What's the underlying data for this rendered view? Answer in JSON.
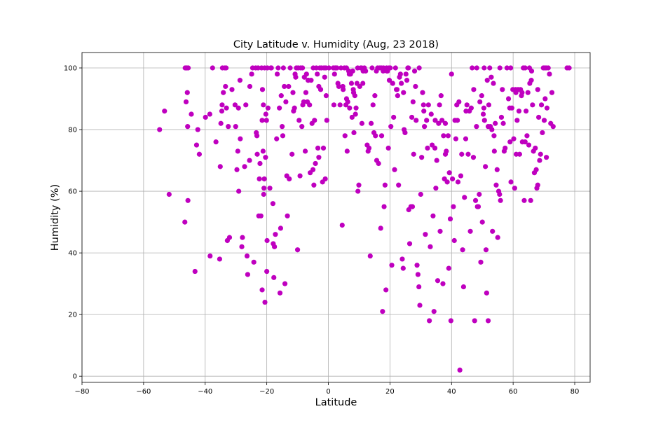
{
  "chart_data": {
    "type": "scatter",
    "title": "City Latitude v. Humidity (Aug, 23 2018)",
    "xlabel": "Latitude",
    "ylabel": "Humidity (%)",
    "xlim": [
      -80,
      85
    ],
    "ylim": [
      -2,
      105
    ],
    "xticks": [
      -80,
      -60,
      -40,
      -20,
      0,
      20,
      40,
      60,
      80
    ],
    "yticks": [
      0,
      20,
      40,
      60,
      80,
      100
    ],
    "grid": true,
    "marker_color": "#bf00bf",
    "points": [
      [
        -54.8,
        80
      ],
      [
        -53.2,
        86
      ],
      [
        -51.7,
        59
      ],
      [
        -46.5,
        100
      ],
      [
        -46.1,
        100
      ],
      [
        -45.9,
        100
      ],
      [
        -46.2,
        89
      ],
      [
        -46.6,
        50
      ],
      [
        -45.8,
        92
      ],
      [
        -45.7,
        81
      ],
      [
        -45.6,
        57
      ],
      [
        -44.5,
        85
      ],
      [
        -43.3,
        34
      ],
      [
        -42.8,
        75
      ],
      [
        -42.4,
        80
      ],
      [
        -41.9,
        72
      ],
      [
        -39.9,
        84
      ],
      [
        -38.5,
        85
      ],
      [
        -38.4,
        39
      ],
      [
        -37.6,
        100
      ],
      [
        -36.5,
        76
      ],
      [
        -35.3,
        38
      ],
      [
        -35.1,
        68
      ],
      [
        -34.9,
        82
      ],
      [
        -34.6,
        86
      ],
      [
        -34.5,
        88
      ],
      [
        -34.1,
        92
      ],
      [
        -34.4,
        100
      ],
      [
        -33.6,
        100
      ],
      [
        -33.2,
        100
      ],
      [
        -33.4,
        94
      ],
      [
        -33.1,
        87
      ],
      [
        -32.8,
        44
      ],
      [
        -32.5,
        81
      ],
      [
        -32.1,
        45
      ],
      [
        -31.3,
        93
      ],
      [
        -30.3,
        88
      ],
      [
        -30.1,
        81
      ],
      [
        -29.7,
        67
      ],
      [
        -29.4,
        73
      ],
      [
        -29.2,
        87
      ],
      [
        -29.1,
        60
      ],
      [
        -28.6,
        77
      ],
      [
        -28.7,
        96
      ],
      [
        -28.1,
        42
      ],
      [
        -27.9,
        45
      ],
      [
        -27.2,
        68
      ],
      [
        -26.8,
        88
      ],
      [
        -26.4,
        39
      ],
      [
        -26.2,
        33
      ],
      [
        -25.6,
        70
      ],
      [
        -25.5,
        94
      ],
      [
        -24.9,
        98
      ],
      [
        -24.6,
        100
      ],
      [
        -24.2,
        37
      ],
      [
        -23.6,
        100
      ],
      [
        -23.4,
        79
      ],
      [
        -23.2,
        78
      ],
      [
        -23.1,
        72
      ],
      [
        -22.8,
        100
      ],
      [
        -22.4,
        64
      ],
      [
        -22.6,
        52
      ],
      [
        -22.2,
        69
      ],
      [
        -21.9,
        52
      ],
      [
        -21.7,
        100
      ],
      [
        -21.5,
        83
      ],
      [
        -21.5,
        28
      ],
      [
        -21.4,
        93
      ],
      [
        -21.2,
        73
      ],
      [
        -21.1,
        88
      ],
      [
        -21.0,
        59
      ],
      [
        -20.9,
        61
      ],
      [
        -20.8,
        64
      ],
      [
        -20.7,
        100
      ],
      [
        -20.6,
        24
      ],
      [
        -20.4,
        71
      ],
      [
        -20.3,
        85
      ],
      [
        -20.1,
        83
      ],
      [
        -20.0,
        34
      ],
      [
        -19.9,
        44
      ],
      [
        -19.8,
        100
      ],
      [
        -19.6,
        87
      ],
      [
        -19.0,
        61
      ],
      [
        -18.5,
        100
      ],
      [
        -18.0,
        56
      ],
      [
        -17.9,
        43
      ],
      [
        -17.7,
        32
      ],
      [
        -17.5,
        42
      ],
      [
        -17.2,
        46
      ],
      [
        -16.8,
        77
      ],
      [
        -16.6,
        98
      ],
      [
        -16.3,
        100
      ],
      [
        -15.9,
        87
      ],
      [
        -15.7,
        27
      ],
      [
        -15.5,
        48
      ],
      [
        -15.3,
        91
      ],
      [
        -15.0,
        81
      ],
      [
        -14.8,
        78
      ],
      [
        -14.6,
        100
      ],
      [
        -14.3,
        94
      ],
      [
        -14.1,
        30
      ],
      [
        -13.8,
        89
      ],
      [
        -13.5,
        65
      ],
      [
        -13.3,
        52
      ],
      [
        -12.9,
        94
      ],
      [
        -12.7,
        64
      ],
      [
        -12.4,
        100
      ],
      [
        -11.8,
        72
      ],
      [
        -11.5,
        92
      ],
      [
        -11.3,
        86
      ],
      [
        -11.0,
        87
      ],
      [
        -10.8,
        98
      ],
      [
        -10.4,
        100
      ],
      [
        -10.0,
        41
      ],
      [
        -9.8,
        100
      ],
      [
        -9.5,
        83
      ],
      [
        -9.2,
        65
      ],
      [
        -9.0,
        100
      ],
      [
        -8.6,
        81
      ],
      [
        -8.3,
        88
      ],
      [
        -8.0,
        89
      ],
      [
        -7.8,
        97
      ],
      [
        -7.5,
        73
      ],
      [
        -7.1,
        98
      ],
      [
        -6.8,
        89
      ],
      [
        -6.5,
        96
      ],
      [
        -6.1,
        88
      ],
      [
        -5.9,
        66
      ],
      [
        -5.6,
        96
      ],
      [
        -5.3,
        82
      ],
      [
        -5.0,
        67
      ],
      [
        -4.7,
        62
      ],
      [
        -4.5,
        83
      ],
      [
        -4.2,
        69
      ],
      [
        -3.9,
        100
      ],
      [
        -3.6,
        98
      ],
      [
        -3.4,
        74
      ],
      [
        -3.1,
        71
      ],
      [
        -2.8,
        100
      ],
      [
        -2.5,
        93
      ],
      [
        -2.2,
        100
      ],
      [
        -1.9,
        63
      ],
      [
        -1.6,
        74
      ],
      [
        -1.2,
        97
      ],
      [
        -1.0,
        64
      ],
      [
        -0.8,
        100
      ],
      [
        -0.5,
        83
      ],
      [
        0.2,
        100
      ],
      [
        1.6,
        100
      ],
      [
        2.0,
        98
      ],
      [
        2.4,
        100
      ],
      [
        2.8,
        100
      ],
      [
        3.1,
        95
      ],
      [
        3.4,
        94
      ],
      [
        3.8,
        88
      ],
      [
        4.1,
        100
      ],
      [
        4.5,
        49
      ],
      [
        4.8,
        93
      ],
      [
        5.2,
        100
      ],
      [
        5.4,
        78
      ],
      [
        5.7,
        88
      ],
      [
        5.9,
        90
      ],
      [
        6.1,
        73
      ],
      [
        6.3,
        89
      ],
      [
        6.6,
        99
      ],
      [
        6.9,
        87
      ],
      [
        7.2,
        98
      ],
      [
        7.5,
        95
      ],
      [
        7.7,
        84
      ],
      [
        7.9,
        99
      ],
      [
        8.1,
        93
      ],
      [
        8.3,
        79
      ],
      [
        8.6,
        91
      ],
      [
        8.8,
        85
      ],
      [
        9.0,
        87
      ],
      [
        9.3,
        95
      ],
      [
        9.5,
        100
      ],
      [
        9.6,
        60
      ],
      [
        9.9,
        62
      ],
      [
        10.2,
        94
      ],
      [
        10.5,
        100
      ],
      [
        10.9,
        82
      ],
      [
        11.3,
        99
      ],
      [
        11.7,
        100
      ],
      [
        12.1,
        99
      ],
      [
        12.6,
        75
      ],
      [
        12.9,
        73
      ],
      [
        13.2,
        74
      ],
      [
        13.6,
        39
      ],
      [
        13.9,
        82
      ],
      [
        14.2,
        100
      ],
      [
        14.5,
        88
      ],
      [
        14.8,
        79
      ],
      [
        15.1,
        91
      ],
      [
        15.3,
        78
      ],
      [
        15.7,
        70
      ],
      [
        16.0,
        100
      ],
      [
        16.3,
        69
      ],
      [
        16.7,
        100
      ],
      [
        17.0,
        48
      ],
      [
        17.3,
        78
      ],
      [
        17.6,
        21
      ],
      [
        17.9,
        100
      ],
      [
        18.1,
        55
      ],
      [
        18.4,
        62
      ],
      [
        18.7,
        28
      ],
      [
        18.9,
        100
      ],
      [
        19.2,
        99
      ],
      [
        19.5,
        74
      ],
      [
        19.8,
        96
      ],
      [
        20.1,
        100
      ],
      [
        20.3,
        81
      ],
      [
        20.6,
        36
      ],
      [
        20.9,
        95
      ],
      [
        21.2,
        84
      ],
      [
        21.5,
        67
      ],
      [
        21.8,
        100
      ],
      [
        22.1,
        93
      ],
      [
        22.5,
        91
      ],
      [
        22.8,
        62
      ],
      [
        23.1,
        97
      ],
      [
        23.4,
        98
      ],
      [
        23.7,
        95
      ],
      [
        24.0,
        38
      ],
      [
        24.3,
        35
      ],
      [
        24.6,
        80
      ],
      [
        24.9,
        79
      ],
      [
        25.2,
        98
      ],
      [
        25.5,
        96
      ],
      [
        25.8,
        100
      ],
      [
        26.1,
        54
      ],
      [
        26.4,
        43
      ],
      [
        26.8,
        55
      ],
      [
        27.1,
        84
      ],
      [
        27.3,
        55
      ],
      [
        27.7,
        72
      ],
      [
        28.0,
        99
      ],
      [
        28.3,
        94
      ],
      [
        28.5,
        83
      ],
      [
        28.8,
        36
      ],
      [
        29.1,
        33
      ],
      [
        29.4,
        29
      ],
      [
        29.7,
        23
      ],
      [
        30.0,
        59
      ],
      [
        30.3,
        71
      ],
      [
        30.6,
        92
      ],
      [
        30.9,
        88
      ],
      [
        31.2,
        81
      ],
      [
        31.5,
        46
      ],
      [
        31.9,
        83
      ],
      [
        32.2,
        74
      ],
      [
        32.5,
        88
      ],
      [
        32.8,
        18
      ],
      [
        33.1,
        42
      ],
      [
        33.4,
        85
      ],
      [
        33.7,
        75
      ],
      [
        34.0,
        52
      ],
      [
        34.3,
        21
      ],
      [
        34.6,
        74
      ],
      [
        34.9,
        61
      ],
      [
        35.2,
        70
      ],
      [
        35.5,
        31
      ],
      [
        35.8,
        82
      ],
      [
        36.1,
        88
      ],
      [
        36.3,
        47
      ],
      [
        36.6,
        91
      ],
      [
        36.9,
        83
      ],
      [
        37.2,
        30
      ],
      [
        37.4,
        78
      ],
      [
        37.7,
        64
      ],
      [
        38.0,
        72
      ],
      [
        38.3,
        73
      ],
      [
        38.6,
        63
      ],
      [
        38.9,
        78
      ],
      [
        39.1,
        35
      ],
      [
        39.3,
        66
      ],
      [
        39.6,
        51
      ],
      [
        39.8,
        18
      ],
      [
        40.0,
        98
      ],
      [
        40.3,
        64
      ],
      [
        40.6,
        55
      ],
      [
        40.9,
        44
      ],
      [
        41.1,
        83
      ],
      [
        41.4,
        77
      ],
      [
        41.7,
        88
      ],
      [
        42.1,
        63
      ],
      [
        42.4,
        89
      ],
      [
        42.7,
        2
      ],
      [
        43.0,
        65
      ],
      [
        43.3,
        72
      ],
      [
        43.6,
        41
      ],
      [
        43.9,
        29
      ],
      [
        44.2,
        58
      ],
      [
        44.6,
        77
      ],
      [
        45.0,
        88
      ],
      [
        45.4,
        72
      ],
      [
        45.8,
        86
      ],
      [
        46.1,
        47
      ],
      [
        46.4,
        87
      ],
      [
        46.7,
        100
      ],
      [
        47.1,
        71
      ],
      [
        47.5,
        18
      ],
      [
        47.8,
        57
      ],
      [
        48.1,
        81
      ],
      [
        48.4,
        55
      ],
      [
        48.7,
        55
      ],
      [
        49.0,
        59
      ],
      [
        49.2,
        89
      ],
      [
        49.5,
        37
      ],
      [
        49.8,
        91
      ],
      [
        50.0,
        50
      ],
      [
        50.3,
        85
      ],
      [
        50.5,
        87
      ],
      [
        50.7,
        83
      ],
      [
        51.0,
        68
      ],
      [
        51.2,
        41
      ],
      [
        51.4,
        27
      ],
      [
        51.6,
        96
      ],
      [
        51.9,
        18
      ],
      [
        52.1,
        88
      ],
      [
        52.4,
        100
      ],
      [
        52.6,
        81
      ],
      [
        52.9,
        97
      ],
      [
        53.1,
        80
      ],
      [
        53.3,
        47
      ],
      [
        53.6,
        95
      ],
      [
        53.9,
        73
      ],
      [
        54.2,
        82
      ],
      [
        54.5,
        62
      ],
      [
        54.8,
        67
      ],
      [
        55.0,
        45
      ],
      [
        55.3,
        60
      ],
      [
        55.6,
        59
      ],
      [
        55.9,
        57
      ],
      [
        56.2,
        84
      ],
      [
        56.5,
        93
      ],
      [
        56.8,
        82
      ],
      [
        57.1,
        73
      ],
      [
        57.4,
        74
      ],
      [
        58.0,
        100
      ],
      [
        58.5,
        90
      ],
      [
        59.0,
        76
      ],
      [
        59.3,
        63
      ],
      [
        59.6,
        87
      ],
      [
        59.9,
        93
      ],
      [
        60.2,
        77
      ],
      [
        60.5,
        61
      ],
      [
        60.8,
        93
      ],
      [
        61.0,
        72
      ],
      [
        61.3,
        83
      ],
      [
        61.6,
        93
      ],
      [
        61.9,
        86
      ],
      [
        62.1,
        72
      ],
      [
        62.4,
        93
      ],
      [
        62.7,
        91
      ],
      [
        63.0,
        76
      ],
      [
        63.3,
        100
      ],
      [
        63.6,
        57
      ],
      [
        63.9,
        76
      ],
      [
        64.2,
        86
      ],
      [
        64.5,
        78
      ],
      [
        64.8,
        92
      ],
      [
        65.1,
        75
      ],
      [
        65.4,
        95
      ],
      [
        65.7,
        57
      ],
      [
        66.0,
        99
      ],
      [
        66.3,
        88
      ],
      [
        66.6,
        73
      ],
      [
        66.9,
        66
      ],
      [
        67.2,
        74
      ],
      [
        67.5,
        67
      ],
      [
        67.7,
        61
      ],
      [
        68.0,
        62
      ],
      [
        68.3,
        84
      ],
      [
        68.6,
        70
      ],
      [
        68.9,
        72
      ],
      [
        69.2,
        88
      ],
      [
        69.5,
        79
      ],
      [
        69.8,
        100
      ],
      [
        70.1,
        83
      ],
      [
        70.4,
        90
      ],
      [
        70.7,
        100
      ],
      [
        71.0,
        87
      ],
      [
        71.4,
        100
      ],
      [
        71.8,
        98
      ],
      [
        72.2,
        82
      ],
      [
        72.6,
        92
      ],
      [
        73.0,
        81
      ],
      [
        77.5,
        100
      ],
      [
        78.2,
        100
      ],
      [
        -45.5,
        100
      ],
      [
        -18.7,
        100
      ],
      [
        -8.4,
        100
      ],
      [
        -4.9,
        100
      ],
      [
        -1.4,
        100
      ],
      [
        2.2,
        100
      ],
      [
        5.9,
        100
      ],
      [
        10.8,
        100
      ],
      [
        17.2,
        100
      ],
      [
        19.7,
        100
      ],
      [
        26.0,
        100
      ],
      [
        29.5,
        100
      ],
      [
        48.2,
        100
      ],
      [
        50.6,
        100
      ],
      [
        55.7,
        100
      ],
      [
        59.2,
        100
      ],
      [
        63.9,
        100
      ],
      [
        65.3,
        100
      ],
      [
        70.3,
        100
      ],
      [
        -10.6,
        97
      ],
      [
        -7.3,
        92
      ],
      [
        -6.6,
        96
      ],
      [
        -3.1,
        94
      ],
      [
        -0.7,
        91
      ],
      [
        1.8,
        88
      ],
      [
        4.7,
        94
      ],
      [
        6.8,
        98
      ],
      [
        8.2,
        92
      ],
      [
        11.2,
        95
      ],
      [
        15.6,
        99
      ],
      [
        17.8,
        99
      ],
      [
        19.0,
        99
      ],
      [
        22.3,
        93
      ],
      [
        24.4,
        92
      ],
      [
        27.5,
        89
      ],
      [
        31.0,
        86
      ],
      [
        34.7,
        83
      ],
      [
        38.0,
        82
      ],
      [
        41.9,
        83
      ],
      [
        44.7,
        86
      ],
      [
        47.2,
        93
      ],
      [
        51.9,
        81
      ],
      [
        53.8,
        78
      ],
      [
        58.9,
        87
      ],
      [
        60.9,
        92
      ],
      [
        62.9,
        92
      ],
      [
        65.9,
        96
      ],
      [
        68.0,
        93
      ],
      [
        70.8,
        71
      ]
    ]
  }
}
